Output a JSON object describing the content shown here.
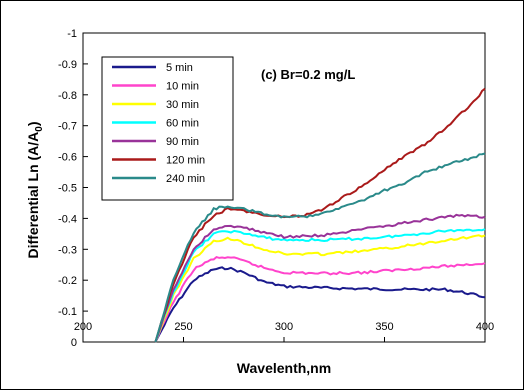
{
  "chart_data": {
    "type": "line",
    "annotation": "(c) Br=0.2 mg/L",
    "xlabel": "Wavelenth,nm",
    "ylabel_prefix": "Differential  Ln (A/A",
    "ylabel_sub": "0",
    "ylabel_suffix": ")",
    "xlim": [
      200,
      400
    ],
    "ylim": [
      0,
      -1
    ],
    "x_ticks": [
      200,
      250,
      300,
      350,
      400
    ],
    "y_ticks": [
      0,
      -0.1,
      -0.2,
      -0.3,
      -0.4,
      -0.5,
      -0.6,
      -0.7,
      -0.8,
      -0.9,
      -1
    ],
    "x_tick_labels": [
      "200",
      "250",
      "300",
      "350",
      "400"
    ],
    "y_tick_labels": [
      "0",
      "-0.1",
      "-0.2",
      "-0.3",
      "-0.4",
      "-0.5",
      "-0.6",
      "-0.7",
      "-0.8",
      "-0.9",
      "-1"
    ],
    "grid": false,
    "legend_position": "top-left",
    "series": [
      {
        "name": "5 min",
        "color": "#1a1a8c",
        "points": [
          [
            236,
            0
          ],
          [
            245,
            -0.11
          ],
          [
            255,
            -0.2
          ],
          [
            265,
            -0.235
          ],
          [
            272,
            -0.24
          ],
          [
            280,
            -0.225
          ],
          [
            290,
            -0.195
          ],
          [
            300,
            -0.18
          ],
          [
            320,
            -0.175
          ],
          [
            340,
            -0.172
          ],
          [
            360,
            -0.17
          ],
          [
            380,
            -0.17
          ],
          [
            390,
            -0.16
          ],
          [
            400,
            -0.145
          ]
        ]
      },
      {
        "name": "10 min",
        "color": "#ff44cc",
        "points": [
          [
            236,
            0
          ],
          [
            245,
            -0.13
          ],
          [
            255,
            -0.235
          ],
          [
            265,
            -0.27
          ],
          [
            272,
            -0.275
          ],
          [
            280,
            -0.262
          ],
          [
            290,
            -0.24
          ],
          [
            300,
            -0.225
          ],
          [
            320,
            -0.222
          ],
          [
            340,
            -0.225
          ],
          [
            360,
            -0.235
          ],
          [
            380,
            -0.245
          ],
          [
            400,
            -0.255
          ]
        ]
      },
      {
        "name": "30 min",
        "color": "#ffff00",
        "points": [
          [
            236,
            0
          ],
          [
            245,
            -0.15
          ],
          [
            255,
            -0.27
          ],
          [
            265,
            -0.325
          ],
          [
            272,
            -0.335
          ],
          [
            280,
            -0.322
          ],
          [
            290,
            -0.3
          ],
          [
            300,
            -0.285
          ],
          [
            320,
            -0.285
          ],
          [
            340,
            -0.295
          ],
          [
            360,
            -0.31
          ],
          [
            380,
            -0.33
          ],
          [
            400,
            -0.345
          ]
        ]
      },
      {
        "name": "60 min",
        "color": "#00ffff",
        "points": [
          [
            236,
            0
          ],
          [
            245,
            -0.16
          ],
          [
            255,
            -0.29
          ],
          [
            265,
            -0.35
          ],
          [
            272,
            -0.36
          ],
          [
            280,
            -0.352
          ],
          [
            290,
            -0.338
          ],
          [
            300,
            -0.33
          ],
          [
            320,
            -0.33
          ],
          [
            340,
            -0.335
          ],
          [
            360,
            -0.345
          ],
          [
            380,
            -0.36
          ],
          [
            400,
            -0.365
          ]
        ]
      },
      {
        "name": "90 min",
        "color": "#993399",
        "points": [
          [
            236,
            0
          ],
          [
            245,
            -0.17
          ],
          [
            255,
            -0.3
          ],
          [
            265,
            -0.365
          ],
          [
            272,
            -0.375
          ],
          [
            280,
            -0.37
          ],
          [
            290,
            -0.355
          ],
          [
            300,
            -0.34
          ],
          [
            320,
            -0.345
          ],
          [
            340,
            -0.365
          ],
          [
            360,
            -0.385
          ],
          [
            380,
            -0.405
          ],
          [
            390,
            -0.41
          ],
          [
            400,
            -0.405
          ]
        ]
      },
      {
        "name": "120 min",
        "color": "#aa1a1a",
        "points": [
          [
            236,
            0
          ],
          [
            245,
            -0.19
          ],
          [
            255,
            -0.34
          ],
          [
            265,
            -0.41
          ],
          [
            272,
            -0.43
          ],
          [
            280,
            -0.425
          ],
          [
            290,
            -0.41
          ],
          [
            300,
            -0.405
          ],
          [
            310,
            -0.41
          ],
          [
            320,
            -0.43
          ],
          [
            330,
            -0.47
          ],
          [
            340,
            -0.51
          ],
          [
            350,
            -0.56
          ],
          [
            360,
            -0.6
          ],
          [
            370,
            -0.64
          ],
          [
            380,
            -0.69
          ],
          [
            390,
            -0.75
          ],
          [
            400,
            -0.82
          ]
        ]
      },
      {
        "name": "240 min",
        "color": "#2a8a8a",
        "points": [
          [
            236,
            0
          ],
          [
            245,
            -0.2
          ],
          [
            255,
            -0.355
          ],
          [
            265,
            -0.43
          ],
          [
            272,
            -0.44
          ],
          [
            280,
            -0.43
          ],
          [
            290,
            -0.415
          ],
          [
            300,
            -0.405
          ],
          [
            310,
            -0.405
          ],
          [
            320,
            -0.42
          ],
          [
            330,
            -0.44
          ],
          [
            340,
            -0.46
          ],
          [
            350,
            -0.49
          ],
          [
            360,
            -0.515
          ],
          [
            370,
            -0.55
          ],
          [
            380,
            -0.57
          ],
          [
            390,
            -0.59
          ],
          [
            400,
            -0.61
          ]
        ]
      }
    ]
  }
}
